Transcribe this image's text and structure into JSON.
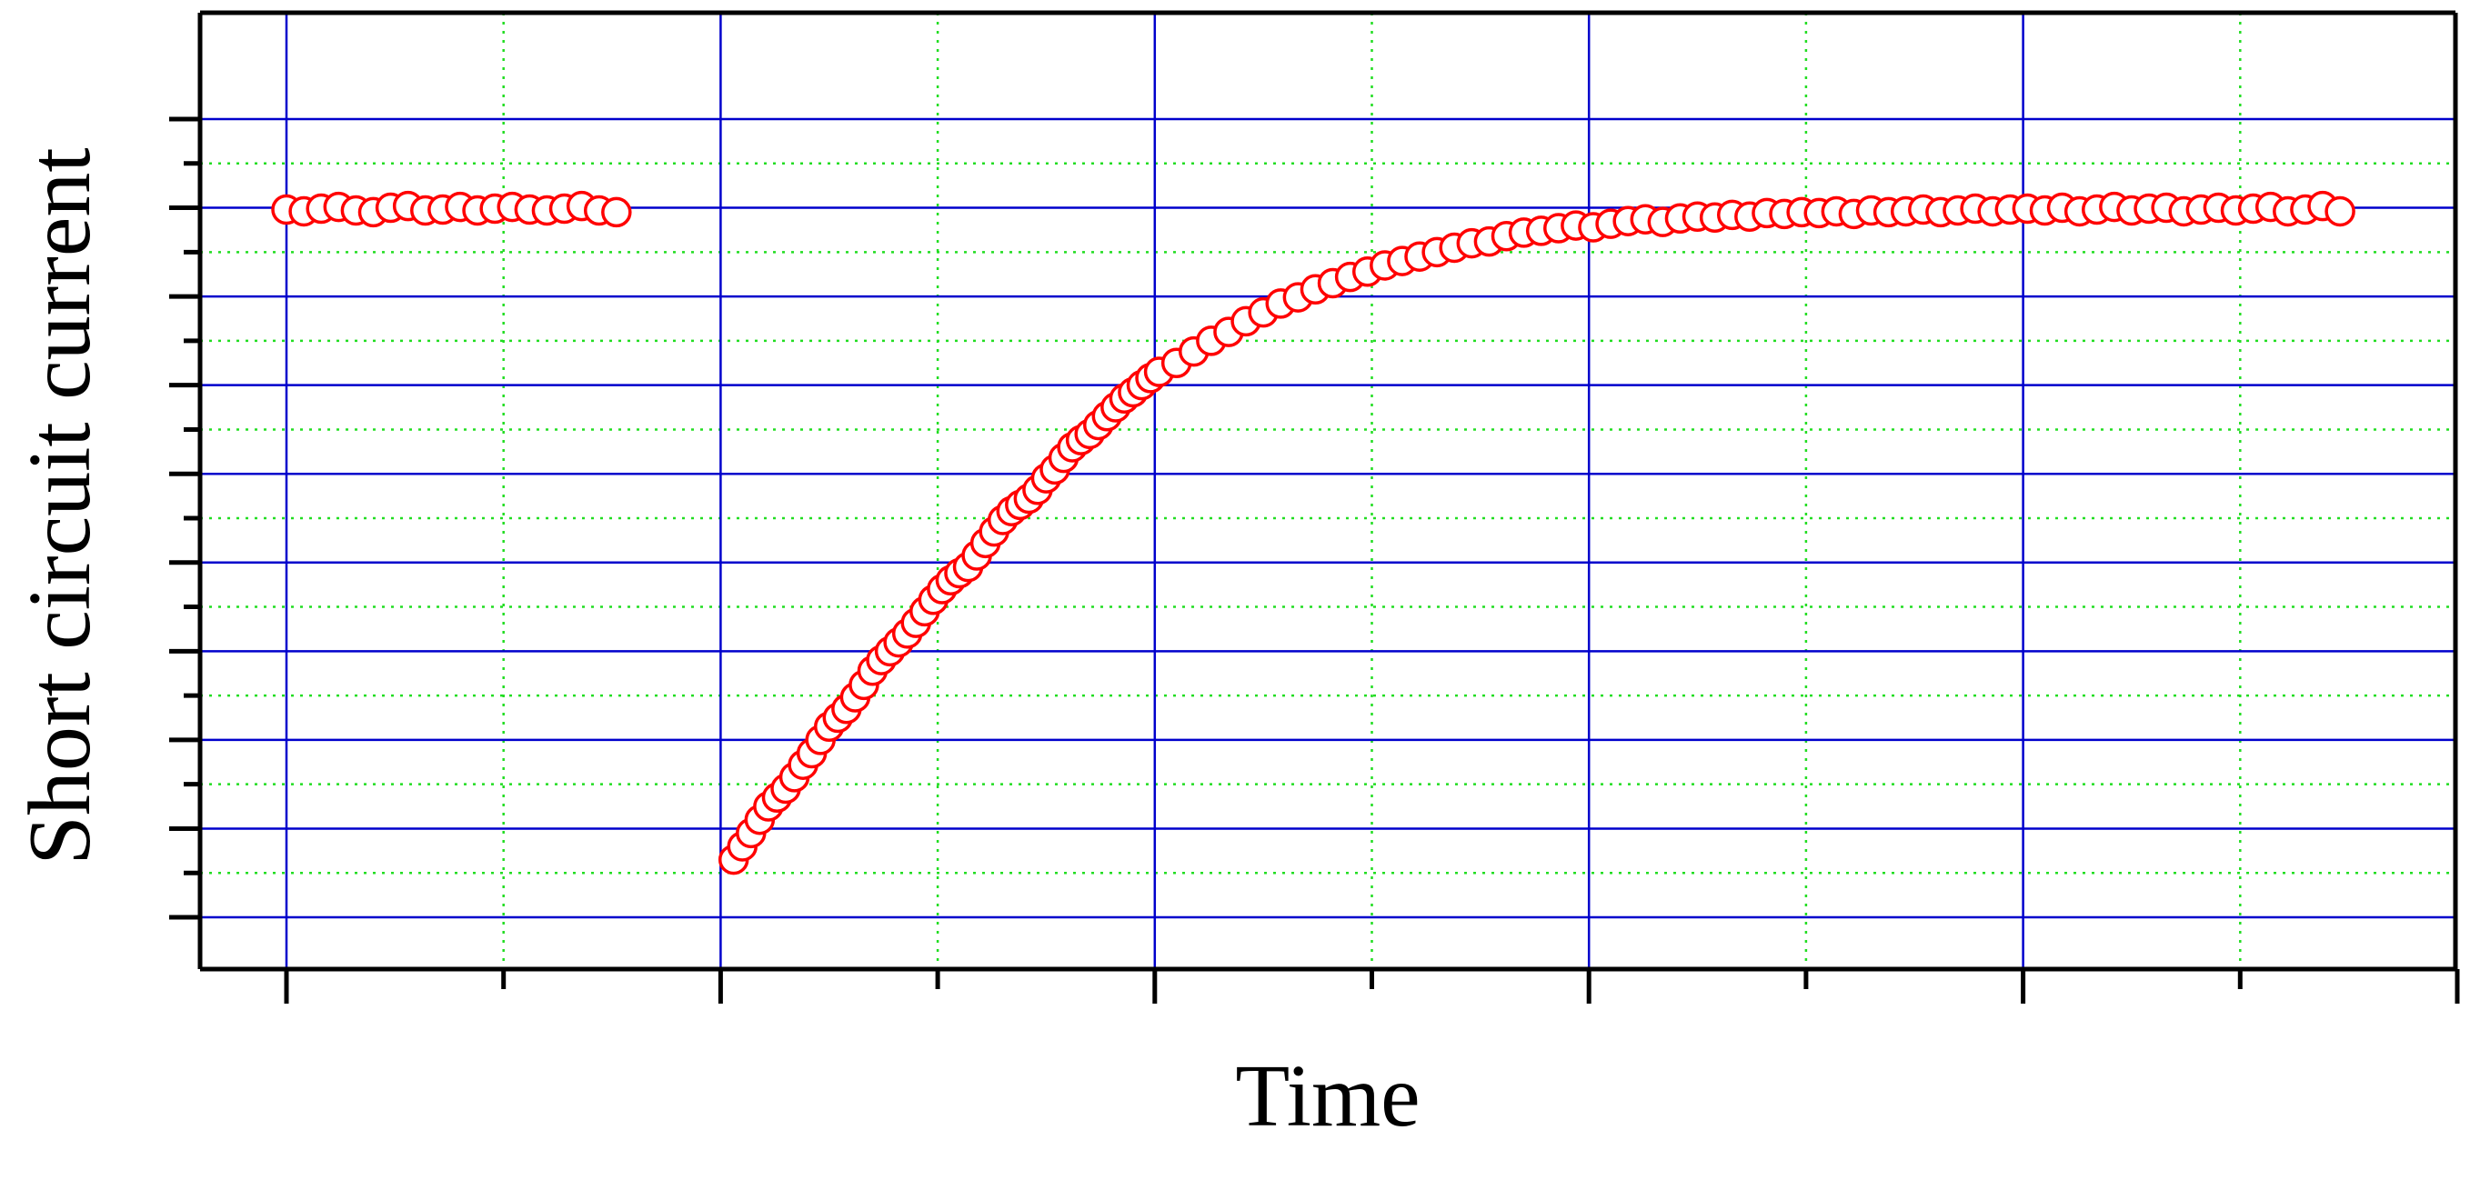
{
  "chart_data": {
    "type": "scatter",
    "title": "",
    "xlabel": "Time",
    "ylabel": "Short circuit current",
    "tick_labels_shown": false,
    "xlim": [
      0,
      10
    ],
    "ylim": [
      0,
      9
    ],
    "x_major_ticks": [
      0,
      2,
      4,
      6,
      8,
      10
    ],
    "x_minor_ticks": [
      1,
      3,
      5,
      7,
      9
    ],
    "y_major_ticks": [
      0,
      1,
      2,
      3,
      4,
      5,
      6,
      7,
      8,
      9
    ],
    "y_minor_ticks": [
      0.5,
      1.5,
      2.5,
      3.5,
      4.5,
      5.5,
      6.5,
      7.5,
      8.5
    ],
    "grid": true,
    "marker": "open-circle",
    "series": [
      {
        "x": [
          0.0,
          0.08,
          0.16,
          0.24,
          0.32,
          0.4,
          0.48,
          0.56,
          0.64,
          0.72,
          0.8,
          0.88,
          0.96,
          1.04,
          1.12,
          1.2,
          1.28,
          1.36,
          1.44,
          1.52
        ],
        "y": [
          7.98,
          7.96,
          7.99,
          8.01,
          7.97,
          7.95,
          8.0,
          8.02,
          7.97,
          7.98,
          8.01,
          7.97,
          7.99,
          8.01,
          7.98,
          7.97,
          7.99,
          8.02,
          7.97,
          7.95
        ]
      },
      {
        "x": [
          2.06,
          2.1,
          2.14,
          2.18,
          2.22,
          2.26,
          2.3,
          2.34,
          2.38,
          2.42,
          2.46,
          2.5,
          2.54,
          2.58,
          2.62,
          2.66,
          2.7,
          2.74,
          2.78,
          2.82,
          2.86,
          2.9,
          2.94,
          2.98,
          3.02,
          3.06,
          3.1,
          3.14,
          3.18,
          3.22,
          3.26,
          3.3,
          3.34,
          3.38,
          3.42,
          3.46,
          3.5,
          3.54,
          3.58,
          3.62,
          3.66,
          3.7,
          3.74,
          3.78,
          3.82,
          3.86,
          3.9,
          3.94,
          3.98,
          4.02,
          4.1,
          4.18,
          4.26,
          4.34,
          4.42,
          4.5,
          4.58,
          4.66,
          4.74,
          4.82,
          4.9,
          4.98,
          5.06,
          5.14,
          5.22,
          5.3,
          5.38,
          5.46,
          5.54,
          5.62,
          5.7,
          5.78,
          5.86,
          5.94,
          6.02,
          6.1,
          6.18,
          6.26,
          6.34,
          6.42,
          6.5,
          6.58,
          6.66,
          6.74,
          6.82,
          6.9,
          6.98,
          7.06,
          7.14,
          7.22,
          7.3,
          7.38,
          7.46,
          7.54,
          7.62,
          7.7,
          7.78,
          7.86,
          7.94,
          8.02,
          8.1,
          8.18,
          8.26,
          8.34,
          8.42,
          8.5,
          8.58,
          8.66,
          8.74,
          8.82,
          8.9,
          8.98,
          9.06,
          9.14,
          9.22,
          9.3,
          9.38,
          9.46
        ],
        "y": [
          0.65,
          0.8,
          0.95,
          1.1,
          1.25,
          1.35,
          1.45,
          1.58,
          1.72,
          1.85,
          2.0,
          2.15,
          2.25,
          2.35,
          2.48,
          2.62,
          2.78,
          2.9,
          3.0,
          3.1,
          3.2,
          3.32,
          3.45,
          3.58,
          3.7,
          3.8,
          3.88,
          3.95,
          4.08,
          4.22,
          4.35,
          4.48,
          4.58,
          4.65,
          4.72,
          4.82,
          4.95,
          5.05,
          5.18,
          5.3,
          5.38,
          5.45,
          5.55,
          5.65,
          5.75,
          5.85,
          5.92,
          6.0,
          6.08,
          6.15,
          6.25,
          6.38,
          6.5,
          6.6,
          6.72,
          6.82,
          6.92,
          6.99,
          7.08,
          7.15,
          7.22,
          7.28,
          7.35,
          7.4,
          7.45,
          7.5,
          7.55,
          7.6,
          7.62,
          7.68,
          7.72,
          7.74,
          7.77,
          7.8,
          7.78,
          7.82,
          7.85,
          7.87,
          7.84,
          7.88,
          7.9,
          7.89,
          7.92,
          7.9,
          7.94,
          7.93,
          7.95,
          7.94,
          7.96,
          7.93,
          7.97,
          7.95,
          7.96,
          7.98,
          7.95,
          7.97,
          7.99,
          7.96,
          7.98,
          7.99,
          7.97,
          8.0,
          7.96,
          7.98,
          8.01,
          7.97,
          7.99,
          8.0,
          7.96,
          7.98,
          8.0,
          7.97,
          7.99,
          8.01,
          7.96,
          7.98,
          8.02,
          7.96
        ]
      }
    ]
  },
  "colors": {
    "marker": "#ff0000",
    "major_grid": "#0000cc",
    "minor_grid": "#22dd22",
    "axis": "#000000",
    "background": "#ffffff"
  }
}
